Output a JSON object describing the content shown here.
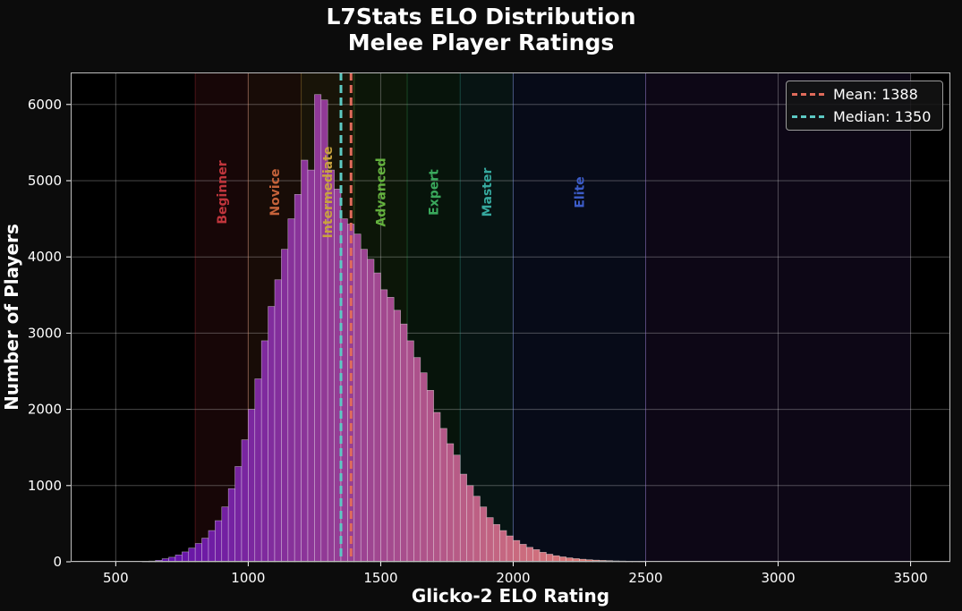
{
  "chart_data": {
    "type": "bar",
    "title": [
      "L7Stats ELO Distribution",
      "Melee Player Ratings"
    ],
    "xlabel": "Glicko-2 ELO Rating",
    "ylabel": "Number of Players",
    "xlim": [
      330,
      3650
    ],
    "ylim": [
      0,
      6420
    ],
    "x_ticks": [
      500,
      1000,
      1500,
      2000,
      2500,
      3000,
      3500
    ],
    "y_ticks": [
      0,
      1000,
      2000,
      3000,
      4000,
      5000,
      6000
    ],
    "grid": true,
    "bin_start": 600,
    "bin_width": 25,
    "bin_counts": [
      5,
      10,
      20,
      40,
      60,
      90,
      130,
      180,
      240,
      310,
      410,
      540,
      720,
      960,
      1250,
      1600,
      2000,
      2400,
      2900,
      3350,
      3700,
      4100,
      4500,
      4820,
      5270,
      5140,
      6130,
      6060,
      5140,
      4890,
      4500,
      4430,
      4300,
      4100,
      3970,
      3790,
      3570,
      3470,
      3300,
      3120,
      2900,
      2680,
      2480,
      2250,
      1960,
      1750,
      1550,
      1400,
      1150,
      1000,
      860,
      720,
      580,
      490,
      410,
      340,
      280,
      230,
      190,
      160,
      125,
      100,
      80,
      65,
      52,
      42,
      34,
      27,
      22,
      18,
      15,
      12,
      10,
      8,
      6,
      5
    ],
    "reference_lines": [
      {
        "name": "Mean",
        "label": "Mean: 1388",
        "value": 1388,
        "color": "#e06b5a"
      },
      {
        "name": "Median",
        "label": "Median: 1350",
        "value": 1350,
        "color": "#5cc9c3"
      }
    ],
    "tiers": [
      {
        "label": "Beginner",
        "from": 800,
        "to": 1000,
        "color": "#c0353c"
      },
      {
        "label": "Novice",
        "from": 1000,
        "to": 1200,
        "color": "#c5623a"
      },
      {
        "label": "Intermediate",
        "from": 1200,
        "to": 1400,
        "color": "#c9a23f"
      },
      {
        "label": "Advanced",
        "from": 1400,
        "to": 1600,
        "color": "#64b23e"
      },
      {
        "label": "Expert",
        "from": 1600,
        "to": 1800,
        "color": "#3aa85c"
      },
      {
        "label": "Master",
        "from": 1800,
        "to": 2000,
        "color": "#36a89e"
      },
      {
        "label": "Elite",
        "from": 2000,
        "to": 2500,
        "color": "#3c5cc8"
      },
      {
        "label": "",
        "from": 2500,
        "to": 3500,
        "color": "#6a3cb8"
      }
    ],
    "legend_position": "top-right"
  }
}
